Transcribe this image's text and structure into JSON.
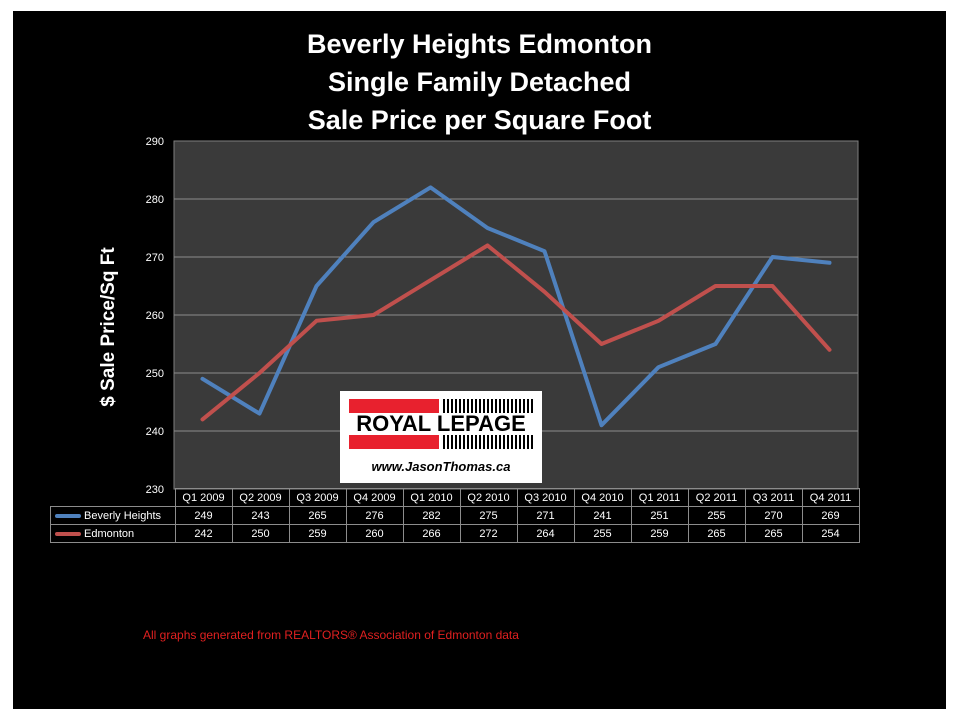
{
  "title_lines": [
    "Beverly Heights Edmonton",
    "Single Family Detached",
    "Sale Price per Square Foot"
  ],
  "logo": {
    "brand": "ROYAL LEPAGE",
    "url": "www.JasonThomas.ca"
  },
  "footnote": "All graphs generated from REALTORS® Association of Edmonton data",
  "chart_data": {
    "type": "line",
    "title": "Beverly Heights Edmonton Single Family Detached Sale Price per Square Foot",
    "ylabel": "$ Sale Price/Sq Ft",
    "xlabel": "",
    "ylim": [
      230,
      290
    ],
    "yticks": [
      230,
      240,
      250,
      260,
      270,
      280,
      290
    ],
    "grid": true,
    "legend": "data-table-below",
    "categories": [
      "Q1 2009",
      "Q2 2009",
      "Q3 2009",
      "Q4 2009",
      "Q1 2010",
      "Q2 2010",
      "Q3 2010",
      "Q4 2010",
      "Q1 2011",
      "Q2 2011",
      "Q3 2011",
      "Q4 2011"
    ],
    "series": [
      {
        "name": "Beverly Heights",
        "color": "#4f81bd",
        "values": [
          249,
          243,
          265,
          276,
          282,
          275,
          271,
          241,
          251,
          255,
          270,
          269
        ]
      },
      {
        "name": "Edmonton",
        "color": "#c0504d",
        "values": [
          242,
          250,
          259,
          260,
          266,
          272,
          264,
          255,
          259,
          265,
          265,
          254
        ]
      }
    ]
  }
}
